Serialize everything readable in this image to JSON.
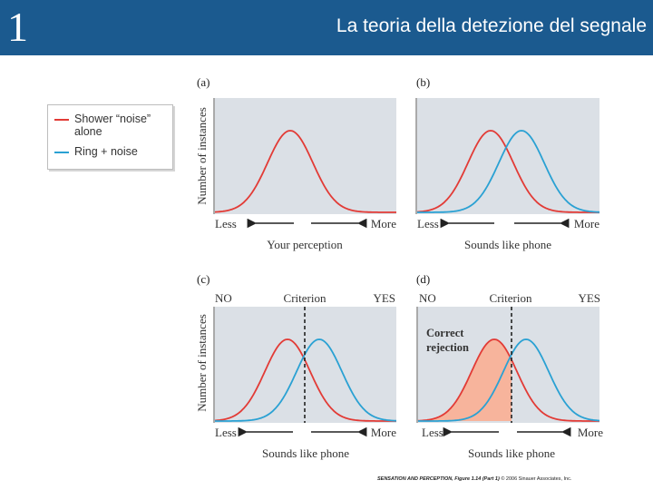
{
  "header": {
    "slide_number": "1",
    "title": "La teoria della detezione del segnale"
  },
  "legend": {
    "items": [
      {
        "label": "Shower “noise” alone",
        "color": "#e23b36"
      },
      {
        "label": "Ring + noise",
        "color": "#2aa1d3"
      }
    ]
  },
  "panels": {
    "a": {
      "tag": "(a)",
      "left_label": "Less",
      "right_label": "More",
      "xlabel": "Your perception"
    },
    "b": {
      "tag": "(b)",
      "left_label": "Less",
      "right_label": "More",
      "xlabel": "Sounds like phone"
    },
    "c": {
      "tag": "(c)",
      "no_label": "NO",
      "criterion_label": "Criterion",
      "yes_label": "YES",
      "left_label": "Less",
      "right_label": "More",
      "xlabel": "Sounds like phone"
    },
    "d": {
      "tag": "(d)",
      "no_label": "NO",
      "criterion_label": "Criterion",
      "yes_label": "YES",
      "region_label_1": "Correct",
      "region_label_2": "rejection",
      "left_label": "Less",
      "right_label": "More",
      "xlabel": "Sounds like phone"
    }
  },
  "ylabel": "Number of instances",
  "colors": {
    "panel_bg": "#dbe0e6",
    "noise_curve": "#e23b36",
    "signal_curve": "#2aa1d3",
    "shade": "#f7b49c",
    "header_bg": "#1b5a8f"
  },
  "footer": {
    "source": "SENSATION AND PERCEPTION, Figure 1.14 (Part 1)",
    "copyright": "© 2006 Sinauer Associates, Inc."
  }
}
